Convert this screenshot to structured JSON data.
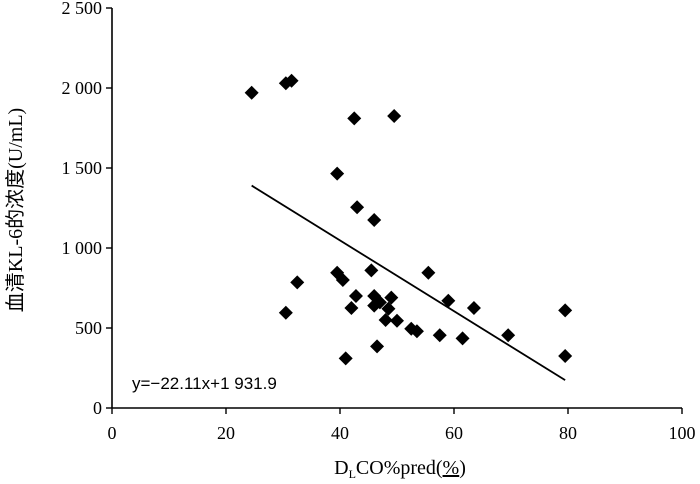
{
  "chart_data": {
    "type": "scatter",
    "xlabel_main": "D",
    "xlabel_sub": "L",
    "xlabel_rest": "CO%pred(",
    "xlabel_unit": "%",
    "xlabel_close": ")",
    "ylabel": "血清KL-6的浓度(U/mL)",
    "xlim": [
      0,
      100
    ],
    "ylim": [
      0,
      2500
    ],
    "x_ticks": [
      0,
      20,
      40,
      60,
      80,
      100
    ],
    "x_tick_labels": [
      "0",
      "20",
      "40",
      "60",
      "80",
      "100"
    ],
    "y_ticks": [
      0,
      500,
      1000,
      1500,
      2000,
      2500
    ],
    "y_tick_labels": [
      "0",
      "500",
      "1 000",
      "1 500",
      "2 000",
      "2 500"
    ],
    "marker": "diamond",
    "marker_color": "#000000",
    "points": [
      {
        "x": 24.5,
        "y": 1970
      },
      {
        "x": 30.5,
        "y": 2030
      },
      {
        "x": 31.5,
        "y": 2045
      },
      {
        "x": 30.5,
        "y": 595
      },
      {
        "x": 32.5,
        "y": 785
      },
      {
        "x": 39.5,
        "y": 1465
      },
      {
        "x": 39.5,
        "y": 845
      },
      {
        "x": 40.5,
        "y": 800
      },
      {
        "x": 41,
        "y": 310
      },
      {
        "x": 42.5,
        "y": 1810
      },
      {
        "x": 42,
        "y": 625
      },
      {
        "x": 42.8,
        "y": 700
      },
      {
        "x": 43,
        "y": 1255
      },
      {
        "x": 45.5,
        "y": 860
      },
      {
        "x": 46,
        "y": 1175
      },
      {
        "x": 46,
        "y": 700
      },
      {
        "x": 46,
        "y": 640
      },
      {
        "x": 46.5,
        "y": 385
      },
      {
        "x": 47,
        "y": 660
      },
      {
        "x": 48,
        "y": 550
      },
      {
        "x": 48.5,
        "y": 620
      },
      {
        "x": 49,
        "y": 690
      },
      {
        "x": 49.5,
        "y": 1825
      },
      {
        "x": 50,
        "y": 545
      },
      {
        "x": 52.5,
        "y": 495
      },
      {
        "x": 53.5,
        "y": 480
      },
      {
        "x": 55.5,
        "y": 845
      },
      {
        "x": 57.5,
        "y": 455
      },
      {
        "x": 59,
        "y": 670
      },
      {
        "x": 61.5,
        "y": 435
      },
      {
        "x": 63.5,
        "y": 625
      },
      {
        "x": 69.5,
        "y": 455
      },
      {
        "x": 79.5,
        "y": 610
      },
      {
        "x": 79.5,
        "y": 325
      }
    ],
    "regression": {
      "slope": -22.11,
      "intercept": 1931.9,
      "x_from": 24.5,
      "x_to": 79.5,
      "label": "y=−22.11x+1 931.9"
    }
  }
}
